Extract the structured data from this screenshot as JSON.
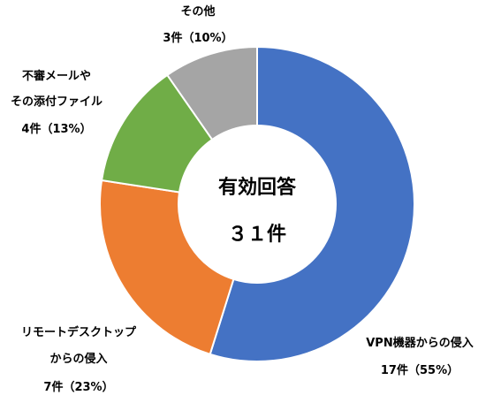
{
  "chart_data": {
    "type": "pie",
    "variant": "donut",
    "start": "top",
    "direction": "clockwise",
    "center_label": {
      "line1": "有効回答",
      "line2": "３１件"
    },
    "slices": [
      {
        "label_lines": [
          "VPN機器からの侵入",
          "17件（55%）"
        ],
        "count": 17,
        "percent": 55,
        "color": "#4472C4"
      },
      {
        "label_lines": [
          "リモートデスクトップ",
          "からの侵入",
          "7件（23%）"
        ],
        "count": 7,
        "percent": 23,
        "color": "#ED7D31"
      },
      {
        "label_lines": [
          "不審メールや",
          "その添付ファイル",
          "4件（13%）"
        ],
        "count": 4,
        "percent": 13,
        "color": "#70AD47"
      },
      {
        "label_lines": [
          "その他",
          "3件（10%）"
        ],
        "count": 3,
        "percent": 10,
        "color": "#A5A5A5"
      }
    ]
  }
}
